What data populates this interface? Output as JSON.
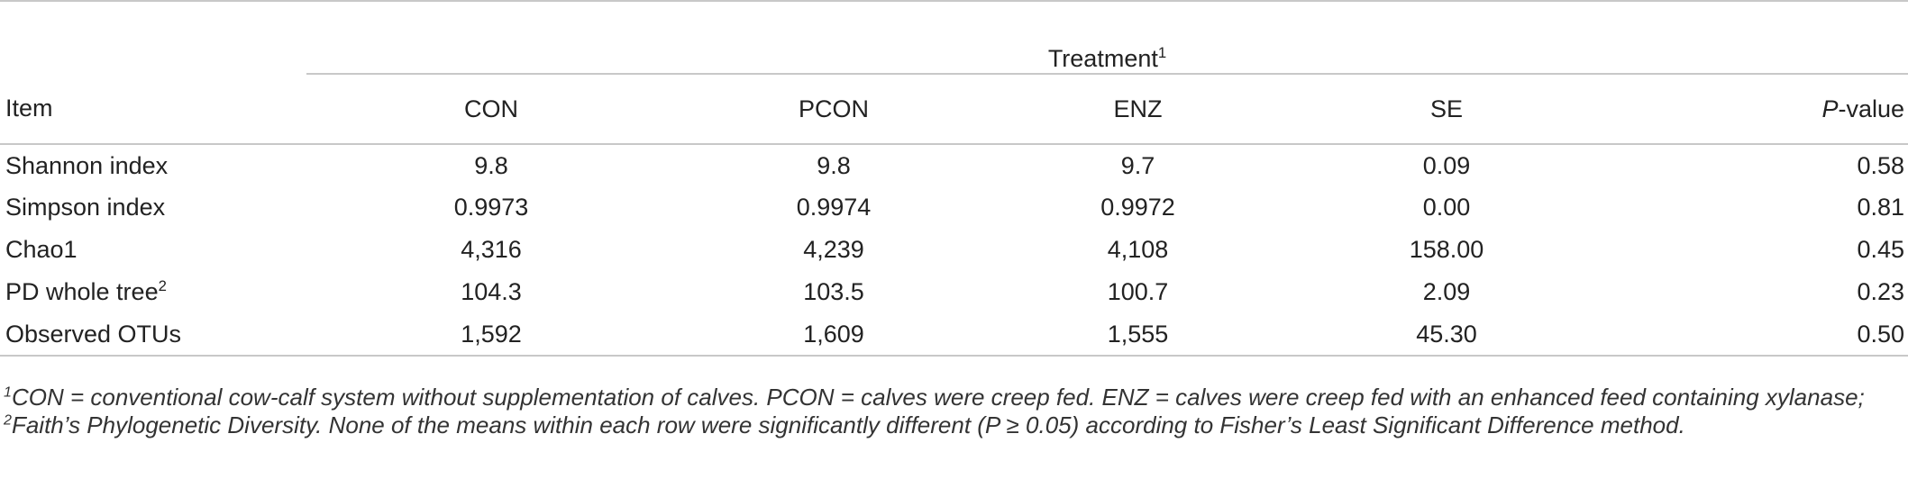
{
  "table": {
    "group_header": "Treatment",
    "group_header_sup": "1",
    "columns": {
      "item": "Item",
      "con": "CON",
      "pcon": "PCON",
      "enz": "ENZ",
      "se": "SE",
      "p_italic": "P",
      "p_rest": "-value"
    },
    "rows": [
      {
        "item": "Shannon index",
        "sup": "",
        "con": "9.8",
        "pcon": "9.8",
        "enz": "9.7",
        "se": "0.09",
        "p": "0.58"
      },
      {
        "item": "Simpson index",
        "sup": "",
        "con": "0.9973",
        "pcon": "0.9974",
        "enz": "0.9972",
        "se": "0.00",
        "p": "0.81"
      },
      {
        "item": "Chao1",
        "sup": "",
        "con": "4,316",
        "pcon": "4,239",
        "enz": "4,108",
        "se": "158.00",
        "p": "0.45"
      },
      {
        "item": "PD whole tree",
        "sup": "2",
        "con": "104.3",
        "pcon": "103.5",
        "enz": "100.7",
        "se": "2.09",
        "p": "0.23"
      },
      {
        "item": "Observed OTUs",
        "sup": "",
        "con": "1,592",
        "pcon": "1,609",
        "enz": "1,555",
        "se": "45.30",
        "p": "0.50"
      }
    ]
  },
  "footnote": {
    "sup1": "1",
    "text1": "CON = conventional cow-calf system without supplementation of calves. PCON = calves were creep fed. ENZ = calves were creep fed with an enhanced feed containing xylanase; ",
    "sup2": "2",
    "text2": "Faith’s Phylogenetic Diversity. None of the means within each row were significantly different (P ≥ 0.05) according to Fisher’s Least Significant Difference method."
  }
}
